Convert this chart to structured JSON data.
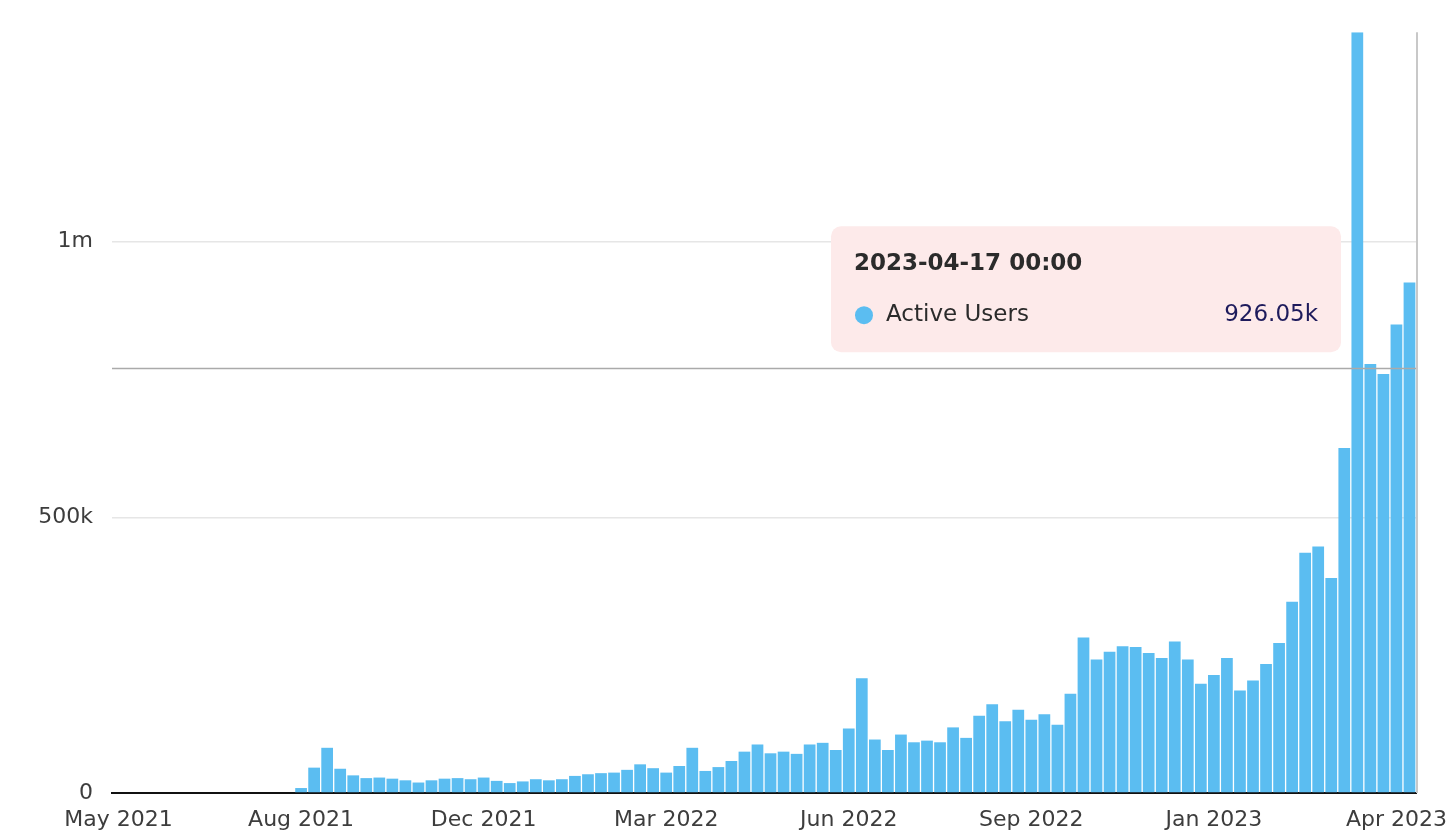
{
  "chart_data": {
    "type": "bar",
    "categories": [
      "May 2021",
      null,
      null,
      null,
      null,
      null,
      null,
      null,
      null,
      null,
      null,
      null,
      null,
      null,
      "Aug 2021",
      null,
      null,
      null,
      null,
      null,
      null,
      null,
      null,
      null,
      null,
      null,
      null,
      null,
      "Dec 2021",
      null,
      null,
      null,
      null,
      null,
      null,
      null,
      null,
      null,
      null,
      null,
      null,
      null,
      "Mar 2022",
      null,
      null,
      null,
      null,
      null,
      null,
      null,
      null,
      null,
      null,
      null,
      null,
      null,
      "Jun 2022",
      null,
      null,
      null,
      null,
      null,
      null,
      null,
      null,
      null,
      null,
      null,
      null,
      null,
      "Sep 2022",
      null,
      null,
      null,
      null,
      null,
      null,
      null,
      null,
      null,
      null,
      null,
      null,
      null,
      "Jan 2023",
      null,
      null,
      null,
      null,
      null,
      null,
      null,
      null,
      null,
      null,
      null,
      null,
      null,
      "Apr 2023",
      null
    ],
    "series": [
      {
        "name": "Active Users",
        "color": "#5bbdf1",
        "values": [
          0,
          0,
          0,
          0,
          0,
          0,
          0,
          0,
          0,
          0,
          0,
          0,
          0,
          0,
          9000,
          46000,
          82000,
          44000,
          32000,
          27000,
          28000,
          26000,
          23000,
          19000,
          23000,
          26000,
          27000,
          25000,
          28000,
          22000,
          18000,
          21000,
          25000,
          23000,
          25000,
          31000,
          34000,
          36000,
          37000,
          42000,
          52000,
          45000,
          37000,
          49000,
          82000,
          40000,
          47000,
          58000,
          75000,
          88000,
          72000,
          75000,
          71000,
          88000,
          91000,
          78000,
          117000,
          208000,
          97000,
          78000,
          106000,
          92000,
          95000,
          92000,
          119000,
          100000,
          140000,
          161000,
          130000,
          151000,
          133000,
          143000,
          124000,
          180000,
          282000,
          242000,
          256000,
          266000,
          265000,
          254000,
          245000,
          275000,
          242000,
          198000,
          214000,
          245000,
          186000,
          204000,
          234000,
          272000,
          347000,
          436000,
          447000,
          390000,
          626000,
          1380000,
          778000,
          760000,
          850000,
          926050
        ]
      }
    ],
    "ylim": [
      0,
      1380000
    ],
    "yticks": [
      0,
      {
        "value": 500000,
        "label": "500k"
      },
      {
        "value": 1000000,
        "label": "1m"
      }
    ],
    "grid": "y",
    "legend": "top right",
    "annotations": [
      "2023-04-17 00:00",
      "926.05k"
    ],
    "ref_lines": [
      {
        "axis": "y",
        "value": 770000,
        "color": "#aaaaaa"
      }
    ]
  }
}
